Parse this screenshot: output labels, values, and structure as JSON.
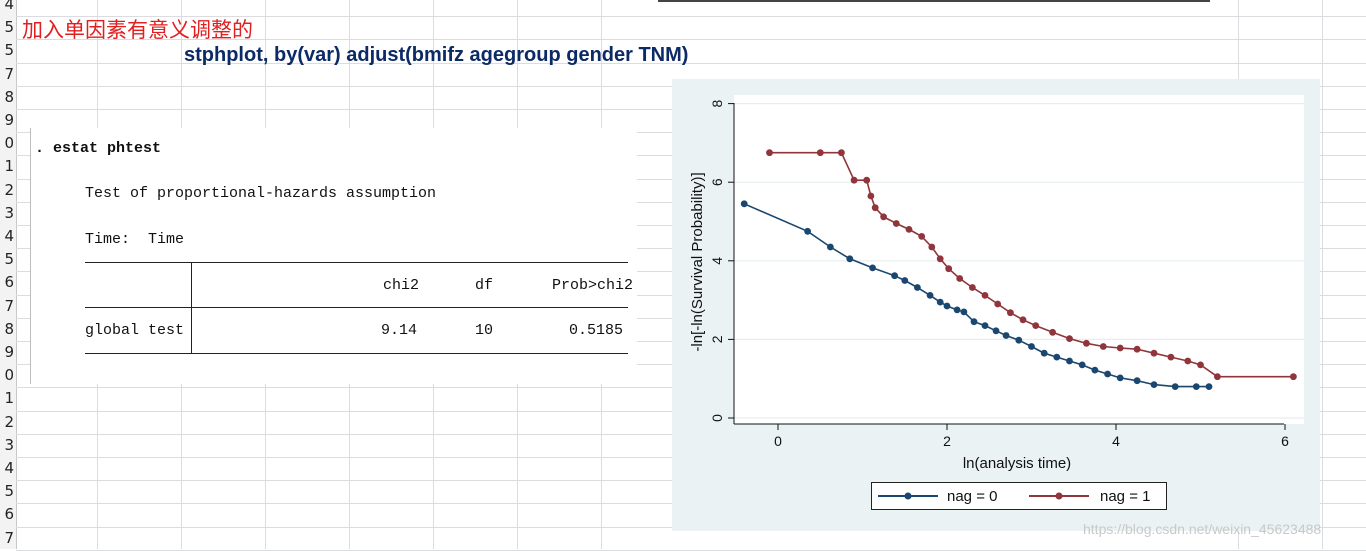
{
  "spreadsheet": {
    "row_numbers": [
      "4",
      "5",
      "5",
      "7",
      "8",
      "9",
      "0",
      "1",
      "2",
      "3",
      "4",
      "5",
      "6",
      "7",
      "8",
      "9",
      "0",
      "1",
      "2",
      "3",
      "4",
      "5",
      "6",
      "7"
    ],
    "note_cn": "加入单因素有意义调整的",
    "command": "stphplot, by(var) adjust(bmifz agegroup gender TNM)"
  },
  "stata_output": {
    "prompt": ". estat phtest",
    "test_title": "Test of proportional-hazards assumption",
    "time_label": "Time:  Time",
    "columns": [
      "chi2",
      "df",
      "Prob>chi2"
    ],
    "rows": [
      {
        "label": "global test",
        "chi2": "9.14",
        "df": "10",
        "prob": "0.5185"
      }
    ]
  },
  "chart_data": {
    "type": "line",
    "xlabel": "ln(analysis time)",
    "ylabel": "-ln[-ln(Survival Probability)]",
    "xlim": [
      -0.5,
      6.2
    ],
    "ylim": [
      -0.2,
      8.2
    ],
    "xticks": [
      "0",
      "2",
      "4",
      "6"
    ],
    "yticks": [
      "0",
      "2",
      "4",
      "6",
      "8"
    ],
    "grid": true,
    "legend_position": "bottom",
    "series": [
      {
        "name": "nag = 0",
        "color": "#1a476f",
        "x": [
          -0.4,
          0.35,
          0.62,
          0.85,
          1.12,
          1.38,
          1.5,
          1.65,
          1.8,
          1.92,
          2.0,
          2.12,
          2.2,
          2.32,
          2.45,
          2.58,
          2.7,
          2.85,
          3.0,
          3.15,
          3.3,
          3.45,
          3.6,
          3.75,
          3.9,
          4.05,
          4.25,
          4.45,
          4.7,
          4.95,
          5.1
        ],
        "y": [
          5.45,
          4.75,
          4.35,
          4.05,
          3.82,
          3.62,
          3.5,
          3.32,
          3.12,
          2.95,
          2.85,
          2.75,
          2.7,
          2.45,
          2.35,
          2.22,
          2.1,
          1.98,
          1.82,
          1.65,
          1.55,
          1.45,
          1.35,
          1.22,
          1.12,
          1.02,
          0.95,
          0.85,
          0.8,
          0.8,
          0.8
        ]
      },
      {
        "name": "nag = 1",
        "color": "#90353b",
        "x": [
          -0.1,
          0.5,
          0.75,
          0.9,
          1.05,
          1.1,
          1.15,
          1.25,
          1.4,
          1.55,
          1.7,
          1.82,
          1.92,
          2.02,
          2.15,
          2.3,
          2.45,
          2.6,
          2.75,
          2.9,
          3.05,
          3.25,
          3.45,
          3.65,
          3.85,
          4.05,
          4.25,
          4.45,
          4.65,
          4.85,
          5.0,
          5.2,
          6.1
        ],
        "y": [
          6.75,
          6.75,
          6.75,
          6.05,
          6.05,
          5.65,
          5.35,
          5.12,
          4.95,
          4.8,
          4.62,
          4.35,
          4.05,
          3.8,
          3.55,
          3.32,
          3.12,
          2.9,
          2.68,
          2.5,
          2.35,
          2.18,
          2.02,
          1.9,
          1.82,
          1.78,
          1.75,
          1.65,
          1.55,
          1.45,
          1.35,
          1.05,
          1.05
        ]
      }
    ]
  },
  "watermark": "https://blog.csdn.net/weixin_45623488"
}
